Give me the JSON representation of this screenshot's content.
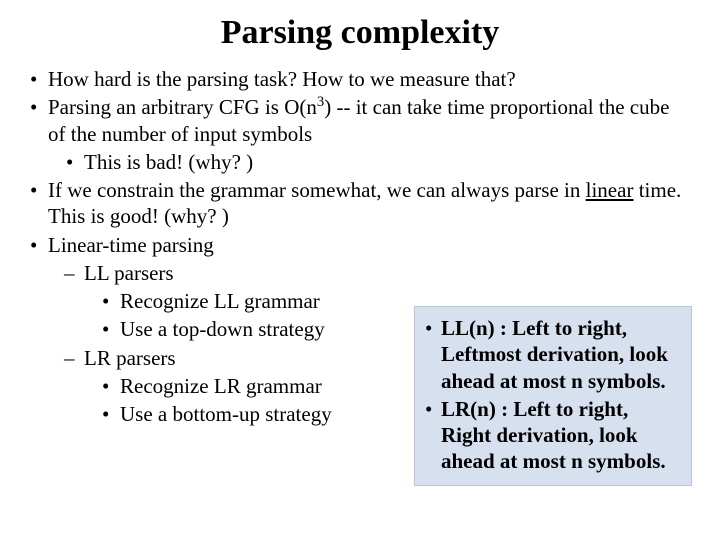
{
  "title": "Parsing complexity",
  "bullets": {
    "b1": "How hard is the parsing task?  How to we measure that?",
    "b2_a": "Parsing an arbitrary CFG is O(n",
    "b2_sup": "3",
    "b2_b": ") --  it can take time proportional the cube of the number of input symbols",
    "b2_1": "This is bad!  (why? )",
    "b3_a": "If we constrain the grammar somewhat, we can always parse in ",
    "b3_u": "linear",
    "b3_b": " time.  This is good!  (why? )",
    "b4": "Linear-time parsing",
    "b4_1": "LL parsers",
    "b4_1_1": "Recognize LL grammar",
    "b4_1_2": "Use a top-down strategy",
    "b4_2": "LR parsers",
    "b4_2_1": "Recognize LR grammar",
    "b4_2_2": "Use a bottom-up strategy"
  },
  "callout": {
    "c1": "LL(n) : Left to right, Leftmost derivation, look ahead at most n symbols.",
    "c2": "LR(n) : Left to right, Right derivation, look ahead at most n symbols."
  },
  "style": {
    "background_color": "#ffffff",
    "text_color": "#000000",
    "callout_bg": "#d6e0ee",
    "callout_border": "#b8c4d8",
    "font_family": "Times New Roman",
    "title_fontsize": 34,
    "body_fontsize": 21,
    "callout_fontsize": 21
  }
}
